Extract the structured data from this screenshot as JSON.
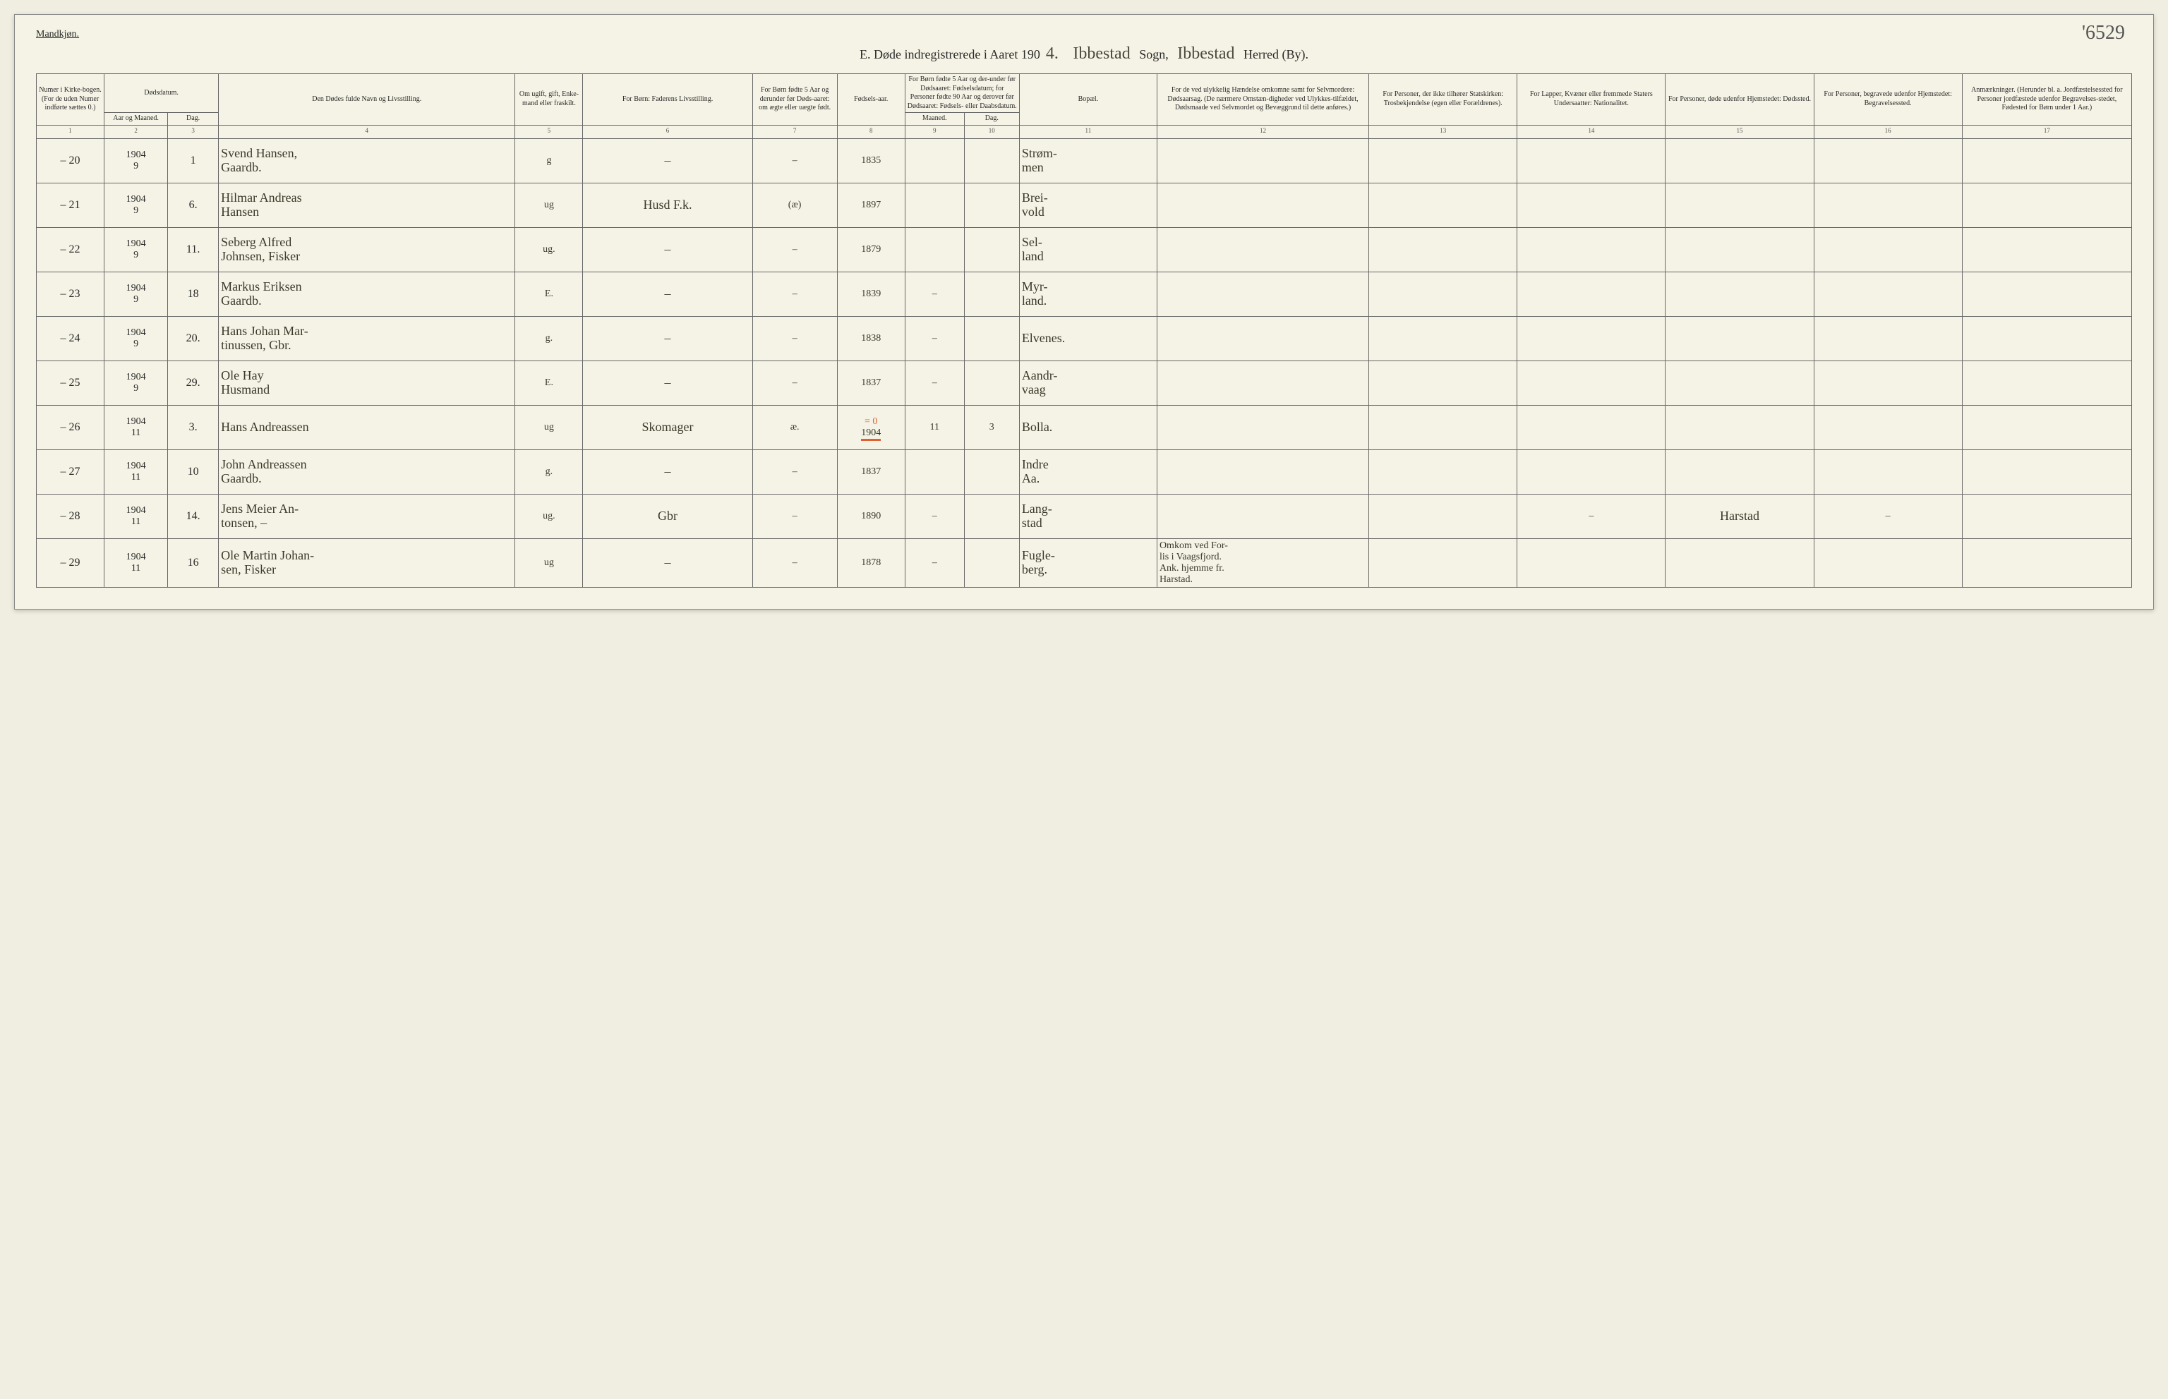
{
  "page_number_hand": "'6529",
  "top_label": "Mandkjøn.",
  "title": {
    "prefix": "E.  Døde indregistrerede i Aaret 190",
    "year_hand": "4.",
    "sogn_hand": "Ibbestad",
    "sogn_label": "Sogn,",
    "herred_hand": "Ibbestad",
    "herred_label": "Herred (By)."
  },
  "headers": {
    "h1": "Numer i Kirke-bogen. (For de uden Numer indførte sættes 0.)",
    "h2": "Dødsdatum.",
    "h2a": "Aar og Maaned.",
    "h2b": "Dag.",
    "h4": "Den Dødes fulde Navn og Livsstilling.",
    "h5": "Om ugift, gift, Enke-mand eller fraskilt.",
    "h6": "For Børn: Faderens Livsstilling.",
    "h7": "For Børn fødte 5 Aar og derunder før Døds-aaret: om ægte eller uægte født.",
    "h8": "Fødsels-aar.",
    "h9": "For Børn fødte 5 Aar og der-under før Dødsaaret: Fødselsdatum; for Personer fødte 90 Aar og derover før Dødsaaret: Fødsels- eller Daabsdatum.",
    "h9a": "Maaned.",
    "h9b": "Dag.",
    "h11": "Bopæl.",
    "h12": "For de ved ulykkelig Hændelse omkomne samt for Selvmordere: Dødsaarsag. (De nærmere Omstæn-digheder ved Ulykkes-tilfældet, Dødsmaade ved Selvmordet og Bevæggrund til dette anføres.)",
    "h13": "For Personer, der ikke tilhører Statskirken: Trosbekjendelse (egen eller Forældrenes).",
    "h14": "For Lapper, Kvæner eller fremmede Staters Undersaatter: Nationalitet.",
    "h15": "For Personer, døde udenfor Hjemstedet: Dødssted.",
    "h16": "For Personer, begravede udenfor Hjemstedet: Begravelsessted.",
    "h17": "Anmærkninger. (Herunder bl. a. Jordfæstelsessted for Personer jordfæstede udenfor Begravelses-stedet, Fødested for Børn under 1 Aar.)"
  },
  "colnums": [
    "1",
    "2",
    "3",
    "4",
    "5",
    "6",
    "7",
    "8",
    "9",
    "10",
    "11",
    "12",
    "13",
    "14",
    "15",
    "16",
    "17"
  ],
  "rows": [
    {
      "num": "20",
      "ym": "1904\n9",
      "day": "1",
      "name": "Svend Hansen,\nGaardb.",
      "stat": "g",
      "father": "–",
      "leg": "–",
      "birth": "1835",
      "bm": "",
      "bd": "",
      "place": "Strøm-\nmen",
      "c12": "",
      "c13": "",
      "c14": "",
      "c15": "",
      "c16": "",
      "c17": ""
    },
    {
      "num": "21",
      "ym": "1904\n9",
      "day": "6.",
      "name": "Hilmar Andreas\nHansen",
      "stat": "ug",
      "father": "Husd F.k.",
      "leg": "(æ)",
      "birth": "1897",
      "bm": "",
      "bd": "",
      "place": "Brei-\nvold",
      "c12": "",
      "c13": "",
      "c14": "",
      "c15": "",
      "c16": "",
      "c17": ""
    },
    {
      "num": "22",
      "ym": "1904\n9",
      "day": "11.",
      "name": "Seberg Alfred\nJohnsen, Fisker",
      "stat": "ug.",
      "father": "–",
      "leg": "–",
      "birth": "1879",
      "bm": "",
      "bd": "",
      "place": "Sel-\nland",
      "c12": "",
      "c13": "",
      "c14": "",
      "c15": "",
      "c16": "",
      "c17": ""
    },
    {
      "num": "23",
      "ym": "1904\n9",
      "day": "18",
      "name": "Markus Eriksen\nGaardb.",
      "stat": "E.",
      "father": "–",
      "leg": "–",
      "birth": "1839",
      "bm": "–",
      "bd": "",
      "place": "Myr-\nland.",
      "c12": "",
      "c13": "",
      "c14": "",
      "c15": "",
      "c16": "",
      "c17": ""
    },
    {
      "num": "24",
      "ym": "1904\n9",
      "day": "20.",
      "name": "Hans Johan Mar-\ntinussen, Gbr.",
      "stat": "g.",
      "father": "–",
      "leg": "–",
      "birth": "1838",
      "bm": "–",
      "bd": "",
      "place": "Elvenes.",
      "c12": "",
      "c13": "",
      "c14": "",
      "c15": "",
      "c16": "",
      "c17": ""
    },
    {
      "num": "25",
      "ym": "1904\n9",
      "day": "29.",
      "name": "Ole Hay\nHusmand",
      "stat": "E.",
      "father": "–",
      "leg": "–",
      "birth": "1837",
      "bm": "–",
      "bd": "",
      "place": "Aandr-\nvaag",
      "c12": "",
      "c13": "",
      "c14": "",
      "c15": "",
      "c16": "",
      "c17": ""
    },
    {
      "num": "26",
      "ym": "1904\n11",
      "day": "3.",
      "name": "Hans Andreassen",
      "stat": "ug",
      "father": "Skomager",
      "leg": "æ.",
      "birth": "1904",
      "bm": "11",
      "bd": "3",
      "place": "Bolla.",
      "c12": "",
      "c13": "",
      "c14": "",
      "c15": "",
      "c16": "",
      "c17": "",
      "red": true
    },
    {
      "num": "27",
      "ym": "1904\n11",
      "day": "10",
      "name": "John Andreassen\nGaardb.",
      "stat": "g.",
      "father": "–",
      "leg": "–",
      "birth": "1837",
      "bm": "",
      "bd": "",
      "place": "Indre\nAa.",
      "c12": "",
      "c13": "",
      "c14": "",
      "c15": "",
      "c16": "",
      "c17": ""
    },
    {
      "num": "28",
      "ym": "1904\n11",
      "day": "14.",
      "name": "Jens Meier An-\ntonsen,  –",
      "stat": "ug.",
      "father": "Gbr",
      "leg": "–",
      "birth": "1890",
      "bm": "–",
      "bd": "",
      "place": "Lang-\nstad",
      "c12": "",
      "c13": "",
      "c14": "–",
      "c15": "Harstad",
      "c16": "–",
      "c17": ""
    },
    {
      "num": "29",
      "ym": "1904\n11",
      "day": "16",
      "name": "Ole Martin Johan-\nsen, Fisker",
      "stat": "ug",
      "father": "–",
      "leg": "–",
      "birth": "1878",
      "bm": "–",
      "bd": "",
      "place": "Fugle-\nberg.",
      "c12": "Omkom ved For-\nlis i Vaagsfjord.\nAnk. hjemme fr.\nHarstad.",
      "c13": "",
      "c14": "",
      "c15": "",
      "c16": "",
      "c17": ""
    }
  ],
  "colors": {
    "paper": "#f5f3e5",
    "ink": "#2a2a2a",
    "hand": "#3a3a2a",
    "rule": "#666666",
    "red": "#e06030"
  }
}
